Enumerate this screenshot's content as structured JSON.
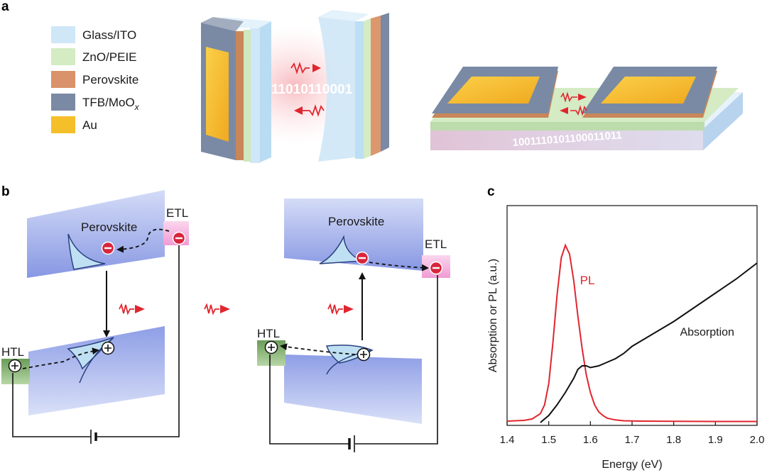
{
  "panels": {
    "a": "a",
    "b": "b",
    "c": "c"
  },
  "legend": [
    {
      "label": "Glass/ITO",
      "color": "#cfe7f7"
    },
    {
      "label": "ZnO/PEIE",
      "color": "#d4ebc4"
    },
    {
      "label": "Perovskite",
      "color": "#d9926a"
    },
    {
      "label": "TFB/MoO",
      "sub": "x",
      "color": "#7a8aa4"
    },
    {
      "label": "Au",
      "color": "#f5bf2a"
    }
  ],
  "panel_a": {
    "bits_left": "11010110001",
    "bits_right": "1001110101100011011"
  },
  "panel_b": {
    "left": {
      "perovskite": "Perovskite",
      "etl": "ETL",
      "htl": "HTL"
    },
    "right": {
      "perovskite": "Perovskite",
      "etl": "ETL",
      "htl": "HTL"
    },
    "colors": {
      "band": "#8fa2e6",
      "etl": "#f3a9d8",
      "htl": "#7fb069",
      "electron": "#d7263d"
    }
  },
  "chart_data": {
    "type": "line",
    "xlabel": "Energy (eV)",
    "ylabel": "Absorption or PL (a.u.)",
    "xlim": [
      1.4,
      2.0
    ],
    "ylim": [
      0,
      1
    ],
    "xticks": [
      "1.4",
      "1.5",
      "1.6",
      "1.7",
      "1.8",
      "1.9",
      "2.0"
    ],
    "series": [
      {
        "name": "PL",
        "color": "#e0262f",
        "x": [
          1.4,
          1.44,
          1.46,
          1.48,
          1.49,
          1.5,
          1.51,
          1.52,
          1.53,
          1.54,
          1.55,
          1.56,
          1.57,
          1.58,
          1.59,
          1.6,
          1.61,
          1.62,
          1.63,
          1.64,
          1.66,
          1.68,
          1.72,
          1.8,
          1.9,
          2.0
        ],
        "y": [
          0.008,
          0.012,
          0.02,
          0.05,
          0.1,
          0.22,
          0.45,
          0.72,
          0.93,
          1.0,
          0.95,
          0.8,
          0.6,
          0.42,
          0.27,
          0.17,
          0.1,
          0.06,
          0.04,
          0.025,
          0.015,
          0.01,
          0.008,
          0.007,
          0.006,
          0.006
        ]
      },
      {
        "name": "Absorption",
        "color": "#111111",
        "x": [
          1.48,
          1.5,
          1.52,
          1.54,
          1.56,
          1.57,
          1.58,
          1.59,
          1.6,
          1.62,
          1.64,
          1.66,
          1.68,
          1.7,
          1.75,
          1.8,
          1.85,
          1.9,
          1.95,
          2.0
        ],
        "y": [
          0.0,
          0.04,
          0.1,
          0.17,
          0.25,
          0.3,
          0.32,
          0.32,
          0.31,
          0.32,
          0.34,
          0.36,
          0.39,
          0.43,
          0.5,
          0.57,
          0.65,
          0.73,
          0.81,
          0.9
        ]
      }
    ]
  }
}
